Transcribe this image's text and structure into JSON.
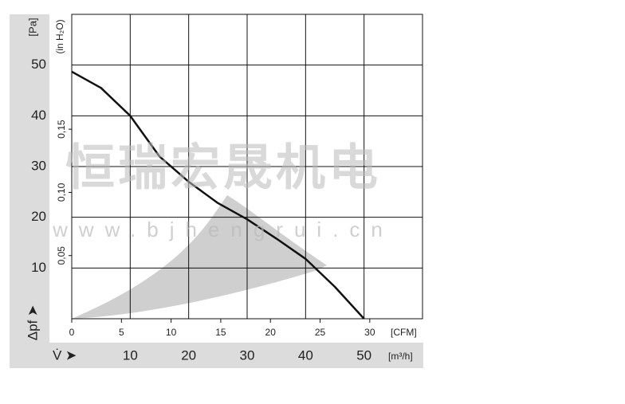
{
  "chart_data": {
    "type": "line",
    "x": [
      0,
      5,
      10,
      15,
      20,
      25,
      30,
      35,
      40,
      45,
      50
    ],
    "series": [
      {
        "name": "",
        "color": "#111111",
        "values": [
          48.7,
          45.5,
          40,
          32,
          27,
          22.8,
          19.6,
          15.8,
          11.8,
          6.3,
          0
        ]
      }
    ],
    "xlim": [
      0,
      60
    ],
    "xticks": [
      10,
      20,
      30,
      40,
      50
    ],
    "ylim": [
      0,
      60
    ],
    "yticks": [
      10,
      20,
      30,
      40,
      50
    ],
    "x2lim": [
      0,
      35.31
    ],
    "x2ticks": [
      0,
      5,
      10,
      15,
      20,
      25,
      30
    ],
    "y2lim": [
      0,
      0.2409
    ],
    "y2ticks": [
      {
        "value": 0.05,
        "label": "0,05"
      },
      {
        "value": 0.1,
        "label": "0,10"
      },
      {
        "value": 0.15,
        "label": "0,15"
      }
    ],
    "y_label": "Δpf ➤",
    "y_unit": "[Pa]",
    "y2_unit": "(in H₂O)",
    "x_label": "V̇ ➤",
    "x_unit": "[m³/h]",
    "x2_unit": "[CFM]",
    "watermark": "恒瑞宏晟机电",
    "watermark_url": "www.bjhengrui.cn",
    "grid": true
  }
}
